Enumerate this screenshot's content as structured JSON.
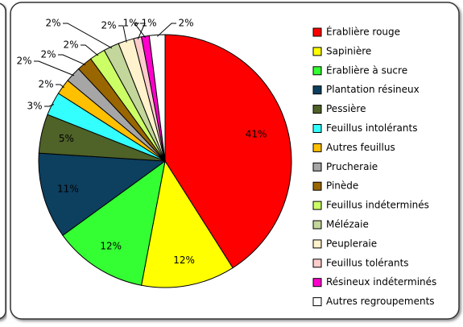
{
  "chart_data": {
    "type": "pie",
    "categories": [
      "Érablière rouge",
      "Sapinière",
      "Érablière à sucre",
      "Plantation résineux",
      "Pessière",
      "Feuillus intolérants",
      "Autres feuillus",
      "Prucheraie",
      "Pinède",
      "Feuillus indéterminés",
      "Mélézaie",
      "Peupleraie",
      "Feuillus tolérants",
      "Résineux indéterminés",
      "Autres regroupements"
    ],
    "values": [
      41,
      12,
      12,
      11,
      5,
      3,
      2,
      2,
      2,
      2,
      2,
      2,
      1,
      1,
      2
    ],
    "value_labels": [
      "41%",
      "12%",
      "12%",
      "11%",
      "5%",
      "3%",
      "2%",
      "2%",
      "2%",
      "2%",
      "2%",
      "2%",
      "1%",
      "1%",
      "2%"
    ],
    "colors": [
      "#ff0000",
      "#ffff00",
      "#33ff33",
      "#0d3f5f",
      "#4f6228",
      "#33ffff",
      "#ffc000",
      "#a6a6a6",
      "#996600",
      "#ccff66",
      "#c3d69b",
      "#fff2cc",
      "#ffcccc",
      "#ff00cc",
      "#ffffff"
    ],
    "legend": "right"
  }
}
